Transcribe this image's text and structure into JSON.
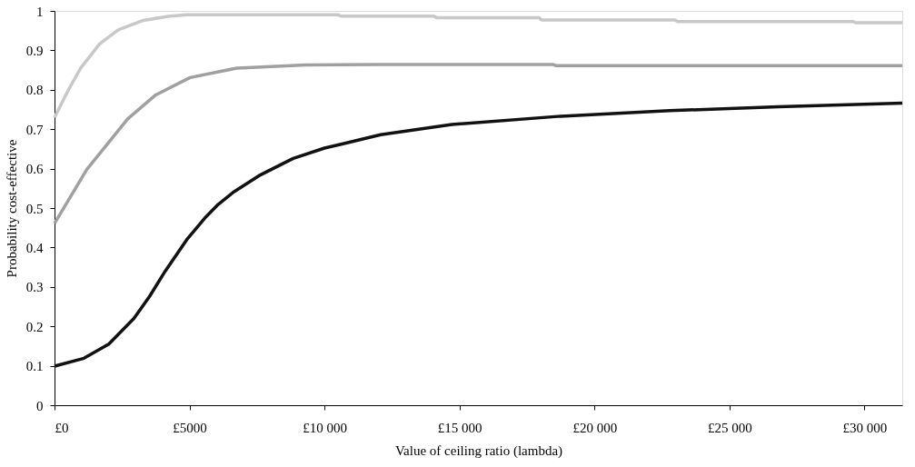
{
  "chart_data": {
    "type": "line",
    "xlabel": "Value of ceiling ratio (lambda)",
    "ylabel": "Probability cost-effective",
    "xlim": [
      0,
      31400
    ],
    "ylim": [
      0,
      1
    ],
    "xticks": [
      {
        "value": 0,
        "label": "£0"
      },
      {
        "value": 5000,
        "label": "£5000"
      },
      {
        "value": 10000,
        "label": "£10 000"
      },
      {
        "value": 15000,
        "label": "£15 000"
      },
      {
        "value": 20000,
        "label": "£20 000"
      },
      {
        "value": 25000,
        "label": "£25 000"
      },
      {
        "value": 30000,
        "label": "£30 000"
      }
    ],
    "yticks": [
      0,
      0.1,
      0.2,
      0.3,
      0.4,
      0.5,
      0.6,
      0.7,
      0.8,
      0.9,
      1
    ],
    "grid": false,
    "marker": "none",
    "line_style": "solid",
    "series": [
      {
        "color": "#c8c8c8",
        "x": [
          0,
          510,
          970,
          1670,
          2360,
          3290,
          4210,
          4900,
          10500,
          10600,
          14050,
          14150,
          17940,
          18040,
          22980,
          23080,
          29570,
          29670,
          31400
        ],
        "values": [
          0.73,
          0.799,
          0.855,
          0.916,
          0.952,
          0.976,
          0.986,
          0.99,
          0.99,
          0.987,
          0.987,
          0.983,
          0.983,
          0.977,
          0.977,
          0.973,
          0.973,
          0.97,
          0.97
        ]
      },
      {
        "color": "#a0a0a0",
        "x": [
          0,
          1200,
          2710,
          3750,
          5020,
          6760,
          9300,
          12000,
          18480,
          18580,
          31400
        ],
        "values": [
          0.461,
          0.598,
          0.726,
          0.787,
          0.831,
          0.855,
          0.863,
          0.864,
          0.864,
          0.861,
          0.861
        ]
      },
      {
        "color": "#111111",
        "x": [
          0,
          1090,
          2010,
          2940,
          3520,
          4100,
          4900,
          5600,
          6060,
          6640,
          7570,
          8840,
          10000,
          10685,
          12080,
          14720,
          18750,
          22780,
          26810,
          31400
        ],
        "values": [
          0.099,
          0.119,
          0.155,
          0.22,
          0.276,
          0.34,
          0.42,
          0.477,
          0.509,
          0.541,
          0.582,
          0.626,
          0.652,
          0.663,
          0.686,
          0.712,
          0.733,
          0.747,
          0.757,
          0.766
        ]
      }
    ]
  }
}
